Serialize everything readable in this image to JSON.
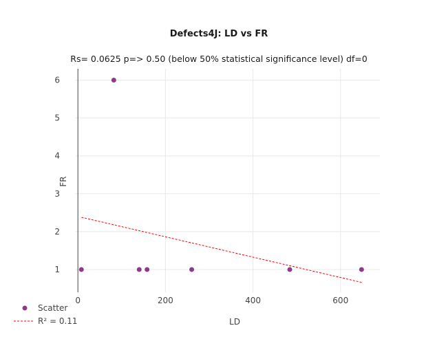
{
  "chart_data": {
    "type": "scatter",
    "title": "Defects4J: LD vs FR",
    "subtitle": "Rs= 0.0625  p=> 0.50 (below 50% statistical significance level)  df=0",
    "xlabel": "LD",
    "ylabel": "FR",
    "xlim": [
      -5,
      690
    ],
    "ylim": [
      0.4,
      6.3
    ],
    "xticks": [
      0,
      200,
      400,
      600
    ],
    "yticks": [
      1,
      2,
      3,
      4,
      5,
      6
    ],
    "grid": true,
    "legend_position": "bottom-left",
    "series": [
      {
        "name": "Scatter",
        "kind": "points",
        "color": "#8e3b86",
        "x": [
          8,
          82,
          140,
          158,
          260,
          484,
          648
        ],
        "y": [
          1,
          6,
          1,
          1,
          1,
          1,
          1
        ]
      },
      {
        "name": "R² = 0.11",
        "kind": "trendline",
        "color": "#ff0000",
        "x": [
          8,
          648
        ],
        "y": [
          2.38,
          0.66
        ]
      }
    ]
  }
}
